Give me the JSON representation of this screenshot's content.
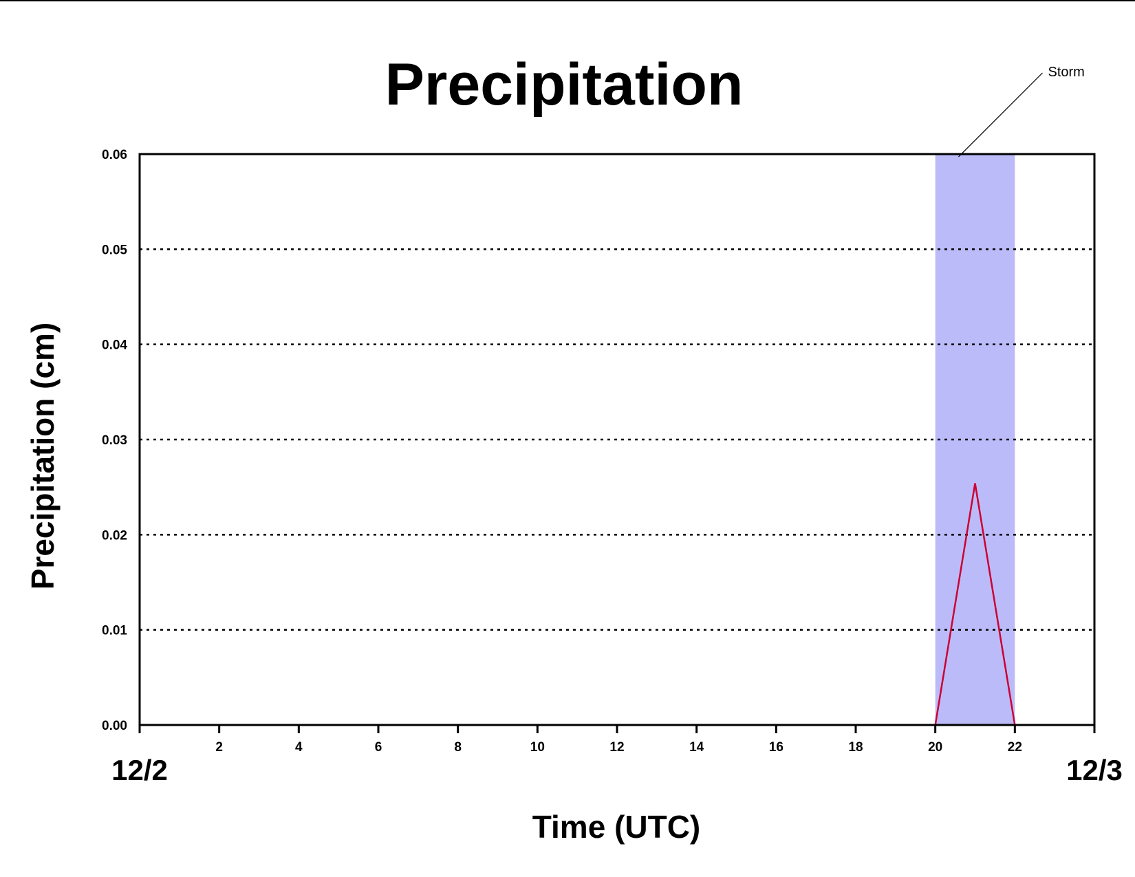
{
  "chart_data": {
    "type": "line",
    "title": "Precipitation",
    "xlabel": "Time (UTC)",
    "ylabel": "Precipitation (cm)",
    "xlim": [
      0,
      24
    ],
    "ylim": [
      0,
      0.06
    ],
    "x_ticks": [
      0,
      2,
      4,
      6,
      8,
      10,
      12,
      14,
      16,
      18,
      20,
      22,
      24
    ],
    "x_tick_labels": [
      "",
      "2",
      "4",
      "6",
      "8",
      "10",
      "12",
      "14",
      "16",
      "18",
      "20",
      "22",
      ""
    ],
    "y_ticks": [
      0,
      0.01,
      0.02,
      0.03,
      0.04,
      0.05,
      0.06
    ],
    "y_tick_labels": [
      "0.00",
      "0.01",
      "0.02",
      "0.03",
      "0.04",
      "0.05",
      "0.06"
    ],
    "grid": "horizontal dotted",
    "date_labels": {
      "start": "12/2",
      "end": "12/3"
    },
    "series": [
      {
        "color": "#cc0033",
        "x": [
          0,
          1,
          2,
          3,
          4,
          5,
          6,
          7,
          8,
          9,
          10,
          11,
          12,
          13,
          14,
          15,
          16,
          17,
          18,
          19,
          20,
          21,
          22,
          23,
          24
        ],
        "y": [
          0,
          0,
          0,
          0,
          0,
          0,
          0,
          0,
          0,
          0,
          0,
          0,
          0,
          0,
          0,
          0,
          0,
          0,
          0,
          0,
          0,
          0.0254,
          0,
          0,
          0
        ]
      }
    ],
    "shaded_region": {
      "x_start": 20,
      "x_end": 22,
      "color": "#bbbbf9"
    },
    "annotations": [
      {
        "text": "Storm",
        "target": "shaded_region"
      }
    ]
  }
}
